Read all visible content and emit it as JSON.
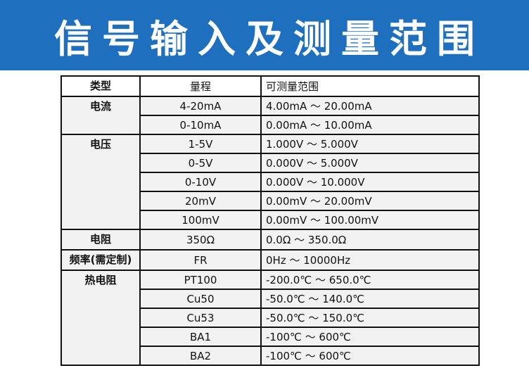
{
  "header": {
    "title": "信号输入及测量范围"
  },
  "table": {
    "columns": [
      "类型",
      "量程",
      "可测量范围"
    ],
    "groups": [
      {
        "type": "电流",
        "rows": [
          [
            "4-20mA",
            "4.00mA ～ 20.00mA"
          ],
          [
            "0-10mA",
            "0.00mA ～ 10.00mA"
          ]
        ]
      },
      {
        "type": "电压",
        "rows": [
          [
            "1-5V",
            "1.000V ～ 5.000V"
          ],
          [
            "0-5V",
            "0.000V ～ 5.000V"
          ],
          [
            "0-10V",
            "0.000V ～ 10.000V"
          ],
          [
            "20mV",
            "0.00mV ～ 20.00mV"
          ],
          [
            "100mV",
            "0.00mV ～ 100.00mV"
          ]
        ]
      },
      {
        "type": "电阻",
        "rows": [
          [
            "350Ω",
            "0.0Ω ～ 350.0Ω"
          ]
        ]
      },
      {
        "type": "频率(需定制)",
        "rows": [
          [
            "FR",
            "0Hz ～ 10000Hz"
          ]
        ]
      },
      {
        "type": "热电阻",
        "rows": [
          [
            "PT100",
            "-200.0℃ ～ 650.0℃"
          ],
          [
            "Cu50",
            "-50.0℃ ～ 140.0℃"
          ],
          [
            "Cu53",
            "-50.0℃ ～ 150.0℃"
          ],
          [
            "BA1",
            "-100℃ ～ 600℃"
          ],
          [
            "BA2",
            "-100℃ ～ 600℃"
          ]
        ]
      }
    ]
  }
}
